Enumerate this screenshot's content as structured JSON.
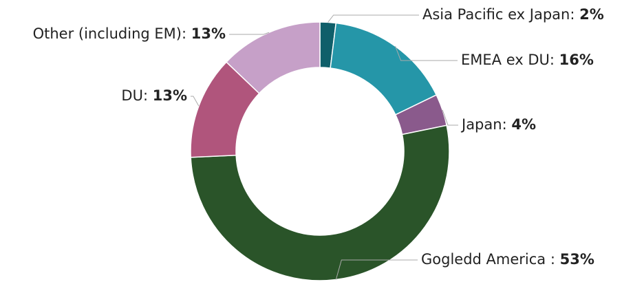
{
  "chart_data": {
    "type": "donut",
    "categories": [
      "Asia Pacific ex Japan:",
      "EMEA ex DU:",
      "Japan:",
      "Gogledd America :",
      "DU:",
      "Other (including EM):"
    ],
    "values": [
      2,
      16,
      4,
      53,
      13,
      13
    ],
    "value_labels": [
      "2%",
      "16%",
      "4%",
      "53%",
      "13%",
      "13%"
    ],
    "colors": [
      "#0f5f6a",
      "#2596a8",
      "#8a5a8c",
      "#2a5429",
      "#b0557c",
      "#c6a0c8"
    ]
  }
}
